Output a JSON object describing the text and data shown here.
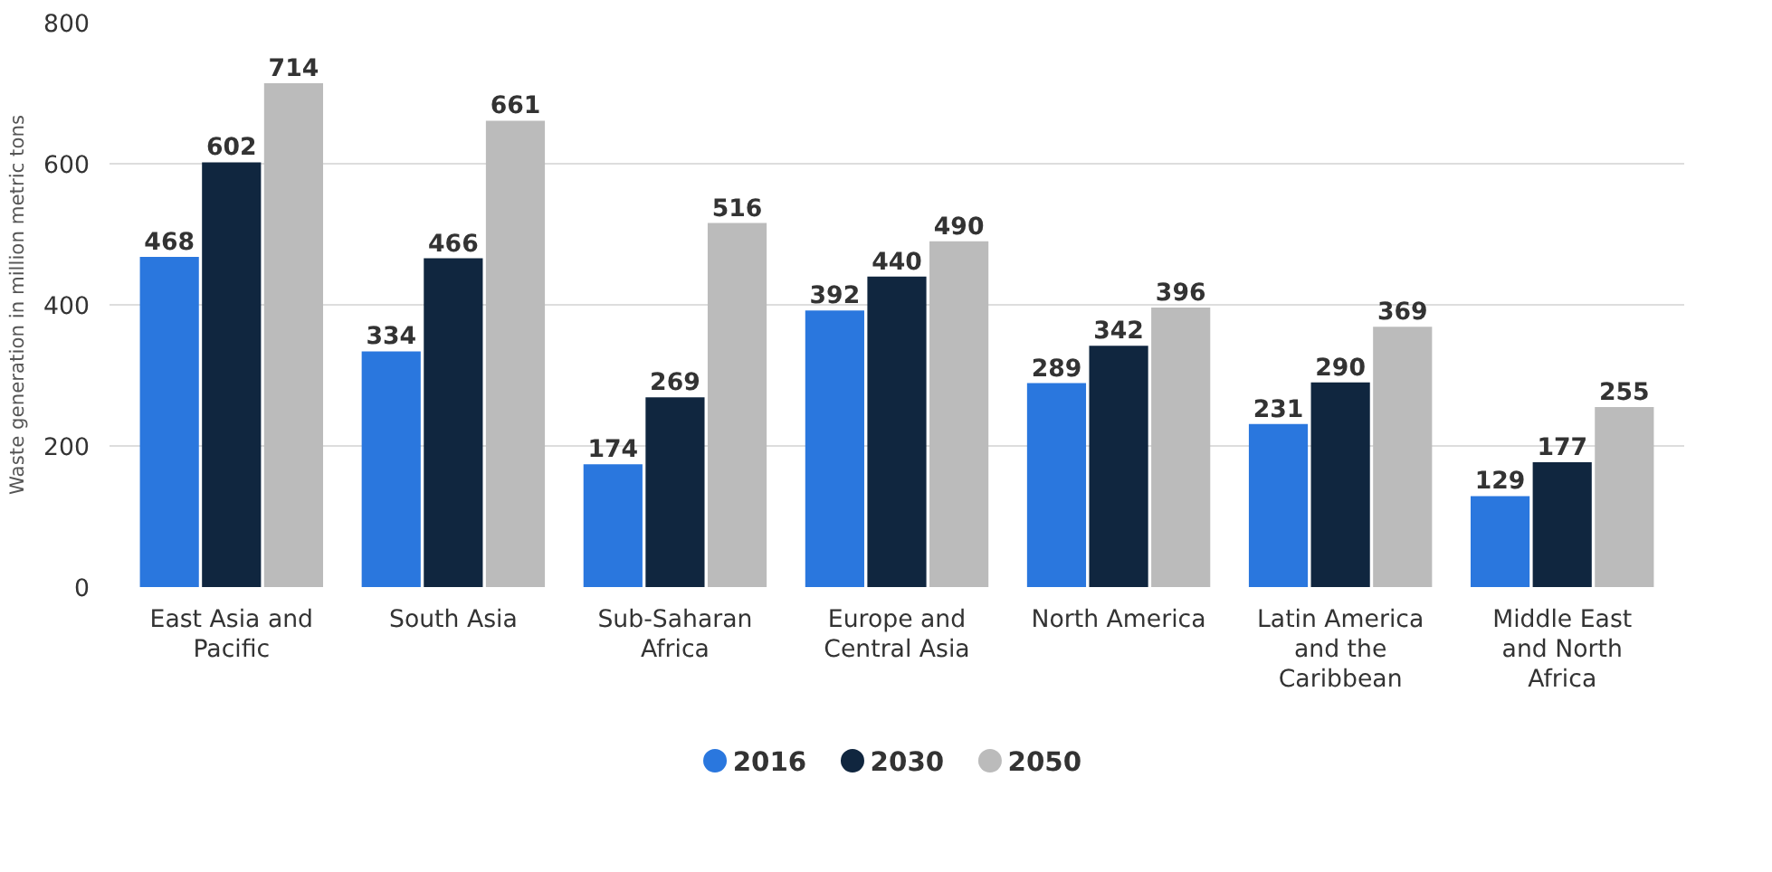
{
  "chart_data": {
    "type": "bar",
    "ylabel": "Waste generation in million metric tons",
    "categories": [
      "East Asia and Pacific",
      "South Asia",
      "Sub-Saharan Africa",
      "Europe and Central Asia",
      "North America",
      "Latin America and the Caribbean",
      "Middle East and North Africa"
    ],
    "series": [
      {
        "name": "2016",
        "color": "#2a77de",
        "values": [
          468,
          334,
          174,
          392,
          289,
          231,
          129
        ]
      },
      {
        "name": "2030",
        "color": "#10263f",
        "values": [
          602,
          466,
          269,
          440,
          342,
          290,
          177
        ]
      },
      {
        "name": "2050",
        "color": "#bbbbbb",
        "values": [
          714,
          661,
          516,
          490,
          396,
          369,
          255
        ]
      }
    ],
    "ylim": [
      0,
      800
    ],
    "yticks": [
      0,
      200,
      400,
      600,
      800
    ],
    "grid": "y",
    "legend": "bottom",
    "data_labels": true
  }
}
